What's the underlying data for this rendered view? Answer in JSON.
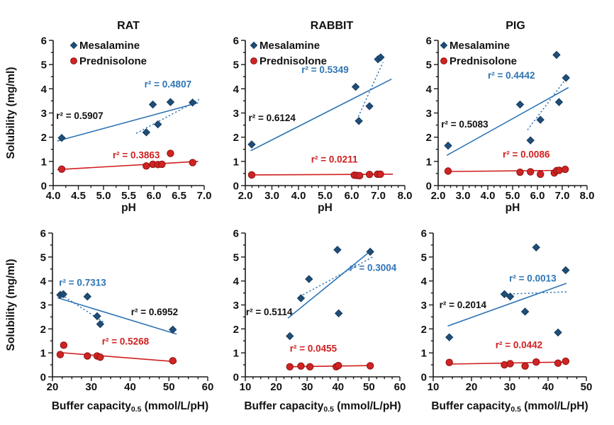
{
  "figure": {
    "ylabel": "Solubility (mg/ml)",
    "legend": [
      {
        "label": "Mesalamine",
        "marker": "diamond"
      },
      {
        "label": "Prednisolone",
        "marker": "circle"
      }
    ],
    "colors": {
      "mesalamine_marker": "#1f4e79",
      "mesalamine_marker_edge": "#163a5e",
      "mesalamine_line": "#2e74b5",
      "blue_text": "#2e74b5",
      "prednisolone_marker": "#d02424",
      "prednisolone_marker_edge": "#8f1010",
      "prednisolone_line": "#cf1f1f",
      "red_text": "#cf1f1f",
      "black_text": "#111111",
      "axis": "#1a1a1a",
      "background": "#ffffff"
    }
  },
  "chart_data": [
    {
      "id": "rat-ph",
      "type": "scatter",
      "title": "RAT",
      "xlabel": {
        "text": "pH"
      },
      "xlim": [
        4.0,
        7.0
      ],
      "xtick_labels": [
        "4.0",
        "4.5",
        "5.0",
        "5.5",
        "6.0",
        "6.5",
        "7.0"
      ],
      "xminor_step": 0.25,
      "ylim": [
        0,
        6
      ],
      "ytick_labels": [
        "0",
        "1",
        "2",
        "3",
        "4",
        "5",
        "6"
      ],
      "yminor_step": 0.5,
      "series": [
        {
          "name": "Mesalamine",
          "marker": "diamond",
          "points": [
            [
              4.17,
              1.97
            ],
            [
              5.85,
              2.2
            ],
            [
              5.98,
              3.35
            ],
            [
              6.08,
              2.53
            ],
            [
              6.33,
              3.45
            ],
            [
              6.77,
              3.43
            ]
          ]
        },
        {
          "name": "Prednisolone",
          "marker": "circle",
          "points": [
            [
              4.17,
              0.68
            ],
            [
              5.85,
              0.81
            ],
            [
              5.98,
              0.88
            ],
            [
              6.08,
              0.87
            ],
            [
              6.16,
              0.88
            ],
            [
              6.33,
              1.33
            ],
            [
              6.77,
              0.95
            ]
          ]
        }
      ],
      "trendlines": [
        {
          "series": "Mesalamine",
          "style": "solid",
          "r2": "0.5907",
          "x": [
            4.08,
            6.88
          ],
          "y": [
            1.84,
            3.42
          ]
        },
        {
          "series": "Mesalamine",
          "style": "dotted",
          "r2": "0.4807",
          "x": [
            5.65,
            6.9
          ],
          "y": [
            2.16,
            3.55
          ]
        },
        {
          "series": "Prednisolone",
          "style": "solid",
          "r2": "0.3863",
          "x": [
            4.08,
            6.88
          ],
          "y": [
            0.66,
            1.0
          ]
        }
      ],
      "annotations": [
        {
          "text": "r² = 0.5907",
          "color": "black",
          "x": 4.06,
          "y": 2.75,
          "anchor": "start"
        },
        {
          "text": "r² = 0.4807",
          "color": "blue",
          "x": 6.28,
          "y": 4.06,
          "anchor": "middle"
        },
        {
          "text": "r² = 0.3863",
          "color": "red",
          "x": 5.65,
          "y": 1.13,
          "anchor": "middle"
        }
      ]
    },
    {
      "id": "rabbit-ph",
      "type": "scatter",
      "title": "RABBIT",
      "xlabel": {
        "text": "pH"
      },
      "xlim": [
        2.0,
        8.0
      ],
      "xtick_labels": [
        "2.0",
        "3.0",
        "4.0",
        "5.0",
        "6.0",
        "7.0",
        "8.0"
      ],
      "xminor_step": 0.25,
      "ylim": [
        0,
        6
      ],
      "ytick_labels": [
        "0",
        "1",
        "2",
        "3",
        "4",
        "5",
        "6"
      ],
      "yminor_step": 0.5,
      "series": [
        {
          "name": "Mesalamine",
          "marker": "diamond",
          "points": [
            [
              2.24,
              1.7
            ],
            [
              6.15,
              4.08
            ],
            [
              6.27,
              2.67
            ],
            [
              6.67,
              3.28
            ],
            [
              6.99,
              5.22
            ],
            [
              7.09,
              5.3
            ]
          ]
        },
        {
          "name": "Prednisolone",
          "marker": "circle",
          "points": [
            [
              2.24,
              0.44
            ],
            [
              6.1,
              0.43
            ],
            [
              6.2,
              0.42
            ],
            [
              6.3,
              0.41
            ],
            [
              6.67,
              0.46
            ],
            [
              6.97,
              0.47
            ],
            [
              7.08,
              0.47
            ]
          ]
        }
      ],
      "trendlines": [
        {
          "series": "Mesalamine",
          "style": "solid",
          "r2": "0.6124",
          "x": [
            2.2,
            7.5
          ],
          "y": [
            1.44,
            4.4
          ]
        },
        {
          "series": "Mesalamine",
          "style": "dotted",
          "r2": "0.5349",
          "x": [
            6.25,
            7.18
          ],
          "y": [
            2.85,
            5.1
          ]
        },
        {
          "series": "Prednisolone",
          "style": "solid",
          "r2": "0.0211",
          "x": [
            2.2,
            7.55
          ],
          "y": [
            0.44,
            0.47
          ]
        }
      ],
      "annotations": [
        {
          "text": "r² = 0.6124",
          "color": "black",
          "x": 2.12,
          "y": 2.66,
          "anchor": "start"
        },
        {
          "text": "r² = 0.5349",
          "color": "blue",
          "x": 5.0,
          "y": 4.66,
          "anchor": "middle"
        },
        {
          "text": "r² = 0.0211",
          "color": "red",
          "x": 5.35,
          "y": 0.95,
          "anchor": "middle"
        }
      ]
    },
    {
      "id": "pig-ph",
      "type": "scatter",
      "title": "PIG",
      "xlabel": {
        "text": "pH"
      },
      "xlim": [
        2.0,
        8.0
      ],
      "xtick_labels": [
        "2.0",
        "3.0",
        "4.0",
        "5.0",
        "6.0",
        "7.0",
        "8.0"
      ],
      "xminor_step": 0.25,
      "ylim": [
        0,
        6
      ],
      "ytick_labels": [
        "0",
        "1",
        "2",
        "3",
        "4",
        "5",
        "6"
      ],
      "yminor_step": 0.5,
      "series": [
        {
          "name": "Mesalamine",
          "marker": "diamond",
          "points": [
            [
              2.4,
              1.65
            ],
            [
              5.3,
              3.35
            ],
            [
              5.72,
              1.87
            ],
            [
              6.12,
              2.72
            ],
            [
              6.77,
              5.4
            ],
            [
              6.87,
              3.45
            ],
            [
              7.15,
              4.45
            ]
          ]
        },
        {
          "name": "Prednisolone",
          "marker": "circle",
          "points": [
            [
              2.4,
              0.6
            ],
            [
              5.3,
              0.55
            ],
            [
              5.72,
              0.57
            ],
            [
              6.12,
              0.47
            ],
            [
              6.68,
              0.52
            ],
            [
              6.78,
              0.62
            ],
            [
              6.88,
              0.63
            ],
            [
              7.12,
              0.67
            ]
          ]
        }
      ],
      "trendlines": [
        {
          "series": "Mesalamine",
          "style": "solid",
          "r2": "0.5083",
          "x": [
            2.35,
            7.25
          ],
          "y": [
            1.25,
            4.05
          ]
        },
        {
          "series": "Mesalamine",
          "style": "dotted",
          "r2": "0.4442",
          "x": [
            5.6,
            7.25
          ],
          "y": [
            2.3,
            4.55
          ]
        },
        {
          "series": "Prednisolone",
          "style": "solid",
          "r2": "0.0086",
          "x": [
            2.35,
            7.25
          ],
          "y": [
            0.58,
            0.63
          ]
        }
      ],
      "annotations": [
        {
          "text": "r² = 0.5083",
          "color": "black",
          "x": 2.12,
          "y": 2.4,
          "anchor": "start"
        },
        {
          "text": "r² = 0.4442",
          "color": "blue",
          "x": 4.95,
          "y": 4.42,
          "anchor": "middle"
        },
        {
          "text": "r² = 0.0086",
          "color": "red",
          "x": 5.55,
          "y": 1.15,
          "anchor": "middle"
        }
      ]
    },
    {
      "id": "rat-buffer",
      "type": "scatter",
      "title": "",
      "xlabel": {
        "text": "Buffer capacity",
        "sub": "0.5",
        "suffix": " (mmol/L/pH)"
      },
      "xlim": [
        20,
        60
      ],
      "xtick_labels": [
        "20",
        "30",
        "40",
        "50",
        "60"
      ],
      "xminor_step": 2.5,
      "ylim": [
        0,
        6
      ],
      "ytick_labels": [
        "0",
        "1",
        "2",
        "3",
        "4",
        "5",
        "6"
      ],
      "yminor_step": 0.5,
      "series": [
        {
          "name": "Mesalamine",
          "marker": "diamond",
          "points": [
            [
              22.0,
              3.42
            ],
            [
              22.8,
              3.45
            ],
            [
              29.0,
              3.35
            ],
            [
              31.5,
              2.53
            ],
            [
              32.3,
              2.2
            ],
            [
              51.0,
              1.97
            ]
          ]
        },
        {
          "name": "Prednisolone",
          "marker": "circle",
          "points": [
            [
              22.0,
              0.93
            ],
            [
              22.9,
              1.32
            ],
            [
              29.0,
              0.87
            ],
            [
              31.5,
              0.87
            ],
            [
              32.3,
              0.82
            ],
            [
              51.0,
              0.67
            ]
          ]
        }
      ],
      "trendlines": [
        {
          "series": "Mesalamine",
          "style": "solid",
          "r2": "0.6952",
          "x": [
            21.3,
            52.0
          ],
          "y": [
            3.3,
            1.78
          ]
        },
        {
          "series": "Mesalamine",
          "style": "dotted",
          "r2": "0.7313",
          "x": [
            21.6,
            33.2
          ],
          "y": [
            3.5,
            2.28
          ]
        },
        {
          "series": "Prednisolone",
          "style": "solid",
          "r2": "0.5268",
          "x": [
            21.3,
            52.0
          ],
          "y": [
            1.02,
            0.63
          ]
        }
      ],
      "annotations": [
        {
          "text": "r² = 0.7313",
          "color": "blue",
          "x": 21.7,
          "y": 3.8,
          "anchor": "start"
        },
        {
          "text": "r² = 0.6952",
          "color": "black",
          "x": 46.3,
          "y": 2.57,
          "anchor": "middle"
        },
        {
          "text": "r² = 0.5268",
          "color": "red",
          "x": 38.8,
          "y": 1.34,
          "anchor": "middle"
        }
      ]
    },
    {
      "id": "rabbit-buffer",
      "type": "scatter",
      "title": "",
      "xlabel": {
        "text": "Buffer capacity",
        "sub": "0.5",
        "suffix": " (mmol/L/pH)"
      },
      "xlim": [
        10,
        60
      ],
      "xtick_labels": [
        "10",
        "20",
        "30",
        "40",
        "50",
        "60"
      ],
      "xminor_step": 2.5,
      "ylim": [
        0,
        6
      ],
      "ytick_labels": [
        "0",
        "1",
        "2",
        "3",
        "4",
        "5",
        "6"
      ],
      "yminor_step": 0.5,
      "series": [
        {
          "name": "Mesalamine",
          "marker": "diamond",
          "points": [
            [
              24.4,
              1.7
            ],
            [
              28.0,
              3.28
            ],
            [
              30.6,
              4.08
            ],
            [
              39.8,
              5.3
            ],
            [
              40.2,
              2.65
            ],
            [
              50.4,
              5.22
            ]
          ]
        },
        {
          "name": "Prednisolone",
          "marker": "circle",
          "points": [
            [
              24.4,
              0.42
            ],
            [
              28.0,
              0.45
            ],
            [
              30.9,
              0.42
            ],
            [
              39.4,
              0.42
            ],
            [
              40.1,
              0.47
            ],
            [
              50.4,
              0.46
            ]
          ]
        }
      ],
      "trendlines": [
        {
          "series": "Mesalamine",
          "style": "solid",
          "r2": "0.5114",
          "x": [
            23.8,
            50.8
          ],
          "y": [
            2.45,
            5.28
          ]
        },
        {
          "series": "Mesalamine",
          "style": "dotted",
          "r2": "0.3004",
          "x": [
            27.6,
            51.5
          ],
          "y": [
            3.35,
            5.02
          ]
        },
        {
          "series": "Prednisolone",
          "style": "solid",
          "r2": "0.0455",
          "x": [
            23.8,
            51.0
          ],
          "y": [
            0.42,
            0.47
          ]
        }
      ],
      "annotations": [
        {
          "text": "r² = 0.5114",
          "color": "black",
          "x": 10.2,
          "y": 2.57,
          "anchor": "start"
        },
        {
          "text": "r² = 0.3004",
          "color": "blue",
          "x": 51.3,
          "y": 4.42,
          "anchor": "middle"
        },
        {
          "text": "r² = 0.0455",
          "color": "red",
          "x": 32.0,
          "y": 1.05,
          "anchor": "middle"
        }
      ]
    },
    {
      "id": "pig-buffer",
      "type": "scatter",
      "title": "",
      "xlabel": {
        "text": "Buffer capacity",
        "sub": "0.5",
        "suffix": " (mmol/L/pH)"
      },
      "xlim": [
        10,
        50
      ],
      "xtick_labels": [
        "10",
        "20",
        "30",
        "40",
        "50"
      ],
      "xminor_step": 2.5,
      "ylim": [
        0,
        6
      ],
      "ytick_labels": [
        "0",
        "1",
        "2",
        "3",
        "4",
        "5",
        "6"
      ],
      "yminor_step": 0.5,
      "series": [
        {
          "name": "Mesalamine",
          "marker": "diamond",
          "points": [
            [
              14.2,
              1.65
            ],
            [
              28.6,
              3.45
            ],
            [
              30.1,
              3.35
            ],
            [
              34.0,
              2.72
            ],
            [
              36.9,
              5.4
            ],
            [
              42.6,
              1.85
            ],
            [
              44.6,
              4.45
            ]
          ]
        },
        {
          "name": "Prednisolone",
          "marker": "circle",
          "points": [
            [
              14.2,
              0.6
            ],
            [
              28.6,
              0.5
            ],
            [
              30.1,
              0.55
            ],
            [
              34.0,
              0.45
            ],
            [
              36.9,
              0.62
            ],
            [
              42.6,
              0.57
            ],
            [
              44.6,
              0.65
            ]
          ]
        }
      ],
      "trendlines": [
        {
          "series": "Mesalamine",
          "style": "solid",
          "r2": "0.2014",
          "x": [
            13.8,
            44.8
          ],
          "y": [
            2.12,
            3.9
          ]
        },
        {
          "series": "Mesalamine",
          "style": "dotted",
          "r2": "0.0013",
          "x": [
            29.0,
            45.3
          ],
          "y": [
            3.45,
            3.55
          ]
        },
        {
          "series": "Prednisolone",
          "style": "solid",
          "r2": "0.0442",
          "x": [
            13.8,
            45.2
          ],
          "y": [
            0.53,
            0.62
          ]
        }
      ],
      "annotations": [
        {
          "text": "r² = 0.2014",
          "color": "black",
          "x": 11.6,
          "y": 2.86,
          "anchor": "start"
        },
        {
          "text": "r² = 0.0013",
          "color": "blue",
          "x": 36.0,
          "y": 3.97,
          "anchor": "middle"
        },
        {
          "text": "r² = 0.0442",
          "color": "red",
          "x": 32.4,
          "y": 1.2,
          "anchor": "middle"
        }
      ]
    }
  ]
}
